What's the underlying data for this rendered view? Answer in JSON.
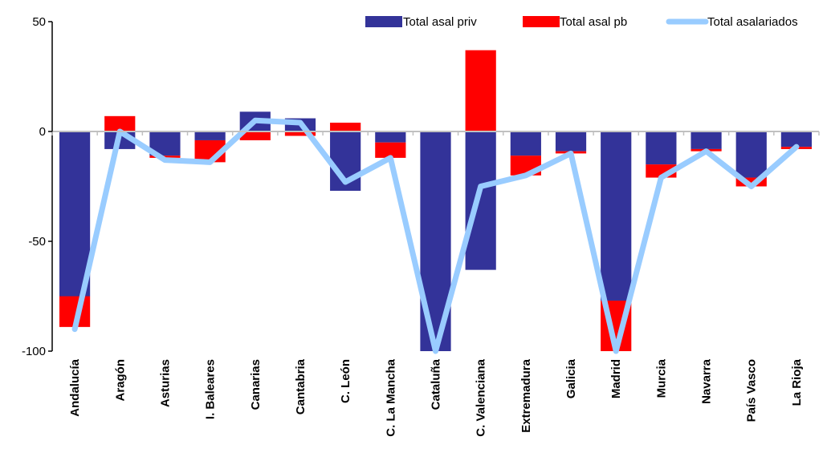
{
  "chart_data": {
    "type": "bar",
    "stacked": true,
    "categories": [
      "Andalucía",
      "Aragón",
      "Asturias",
      "I. Baleares",
      "Canarias",
      "Cantabria",
      "C. León",
      "C. La Mancha",
      "Cataluña",
      "C. Valenciana",
      "Extremadura",
      "Galicia",
      "Madrid",
      "Murcia",
      "Navarra",
      "País Vasco",
      "La Rioja"
    ],
    "series": [
      {
        "name": "Total asal priv",
        "type": "bar",
        "color": "#333399",
        "values": [
          -75,
          -8,
          -11,
          -4,
          9,
          6,
          -27,
          -5,
          -100,
          -63,
          -11,
          -9,
          -77,
          -15,
          -8,
          -21,
          -7
        ]
      },
      {
        "name": "Total asal pb",
        "type": "bar",
        "color": "#ff0000",
        "values": [
          -14,
          7,
          -1,
          -10,
          -4,
          -2,
          4,
          -7,
          0,
          37,
          -9,
          -1,
          -23,
          -6,
          -1,
          -4,
          -1
        ]
      },
      {
        "name": "Total asalariados",
        "type": "line",
        "color": "#99ccff",
        "values": [
          -90,
          0,
          -13,
          -14,
          5,
          4,
          -23,
          -12,
          -101,
          -25,
          -20,
          -10,
          -101,
          -21,
          -9,
          -25,
          -7
        ]
      }
    ],
    "ylim": [
      -100,
      50
    ],
    "yticks": [
      50,
      0,
      -50,
      -100
    ],
    "legend_position": "top-right",
    "grid": false
  }
}
